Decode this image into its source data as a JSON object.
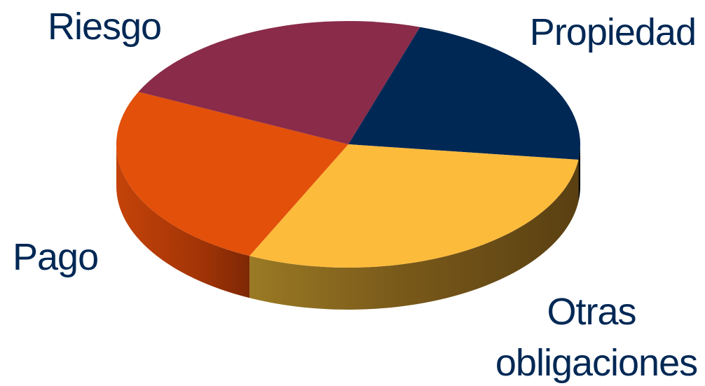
{
  "chart_data": {
    "type": "pie",
    "three_d": true,
    "categories": [
      "Propiedad",
      "Otras obligaciones",
      "Pago",
      "Riesgo"
    ],
    "values": [
      22,
      30,
      25,
      23
    ],
    "slices": [
      {
        "name": "Propiedad",
        "value": 22,
        "color": "#002855",
        "label_lines": [
          "Propiedad"
        ]
      },
      {
        "name": "Otras obligaciones",
        "value": 30,
        "color": "#FDBB3C",
        "label_lines": [
          "Otras",
          "obligaciones"
        ]
      },
      {
        "name": "Pago",
        "value": 25,
        "color": "#E2500A",
        "label_lines": [
          "Pago"
        ]
      },
      {
        "name": "Riesgo",
        "value": 23,
        "color": "#8A2B49",
        "label_lines": [
          "Riesgo"
        ]
      }
    ],
    "title": "",
    "legend": "none",
    "label_color": "#002855"
  }
}
